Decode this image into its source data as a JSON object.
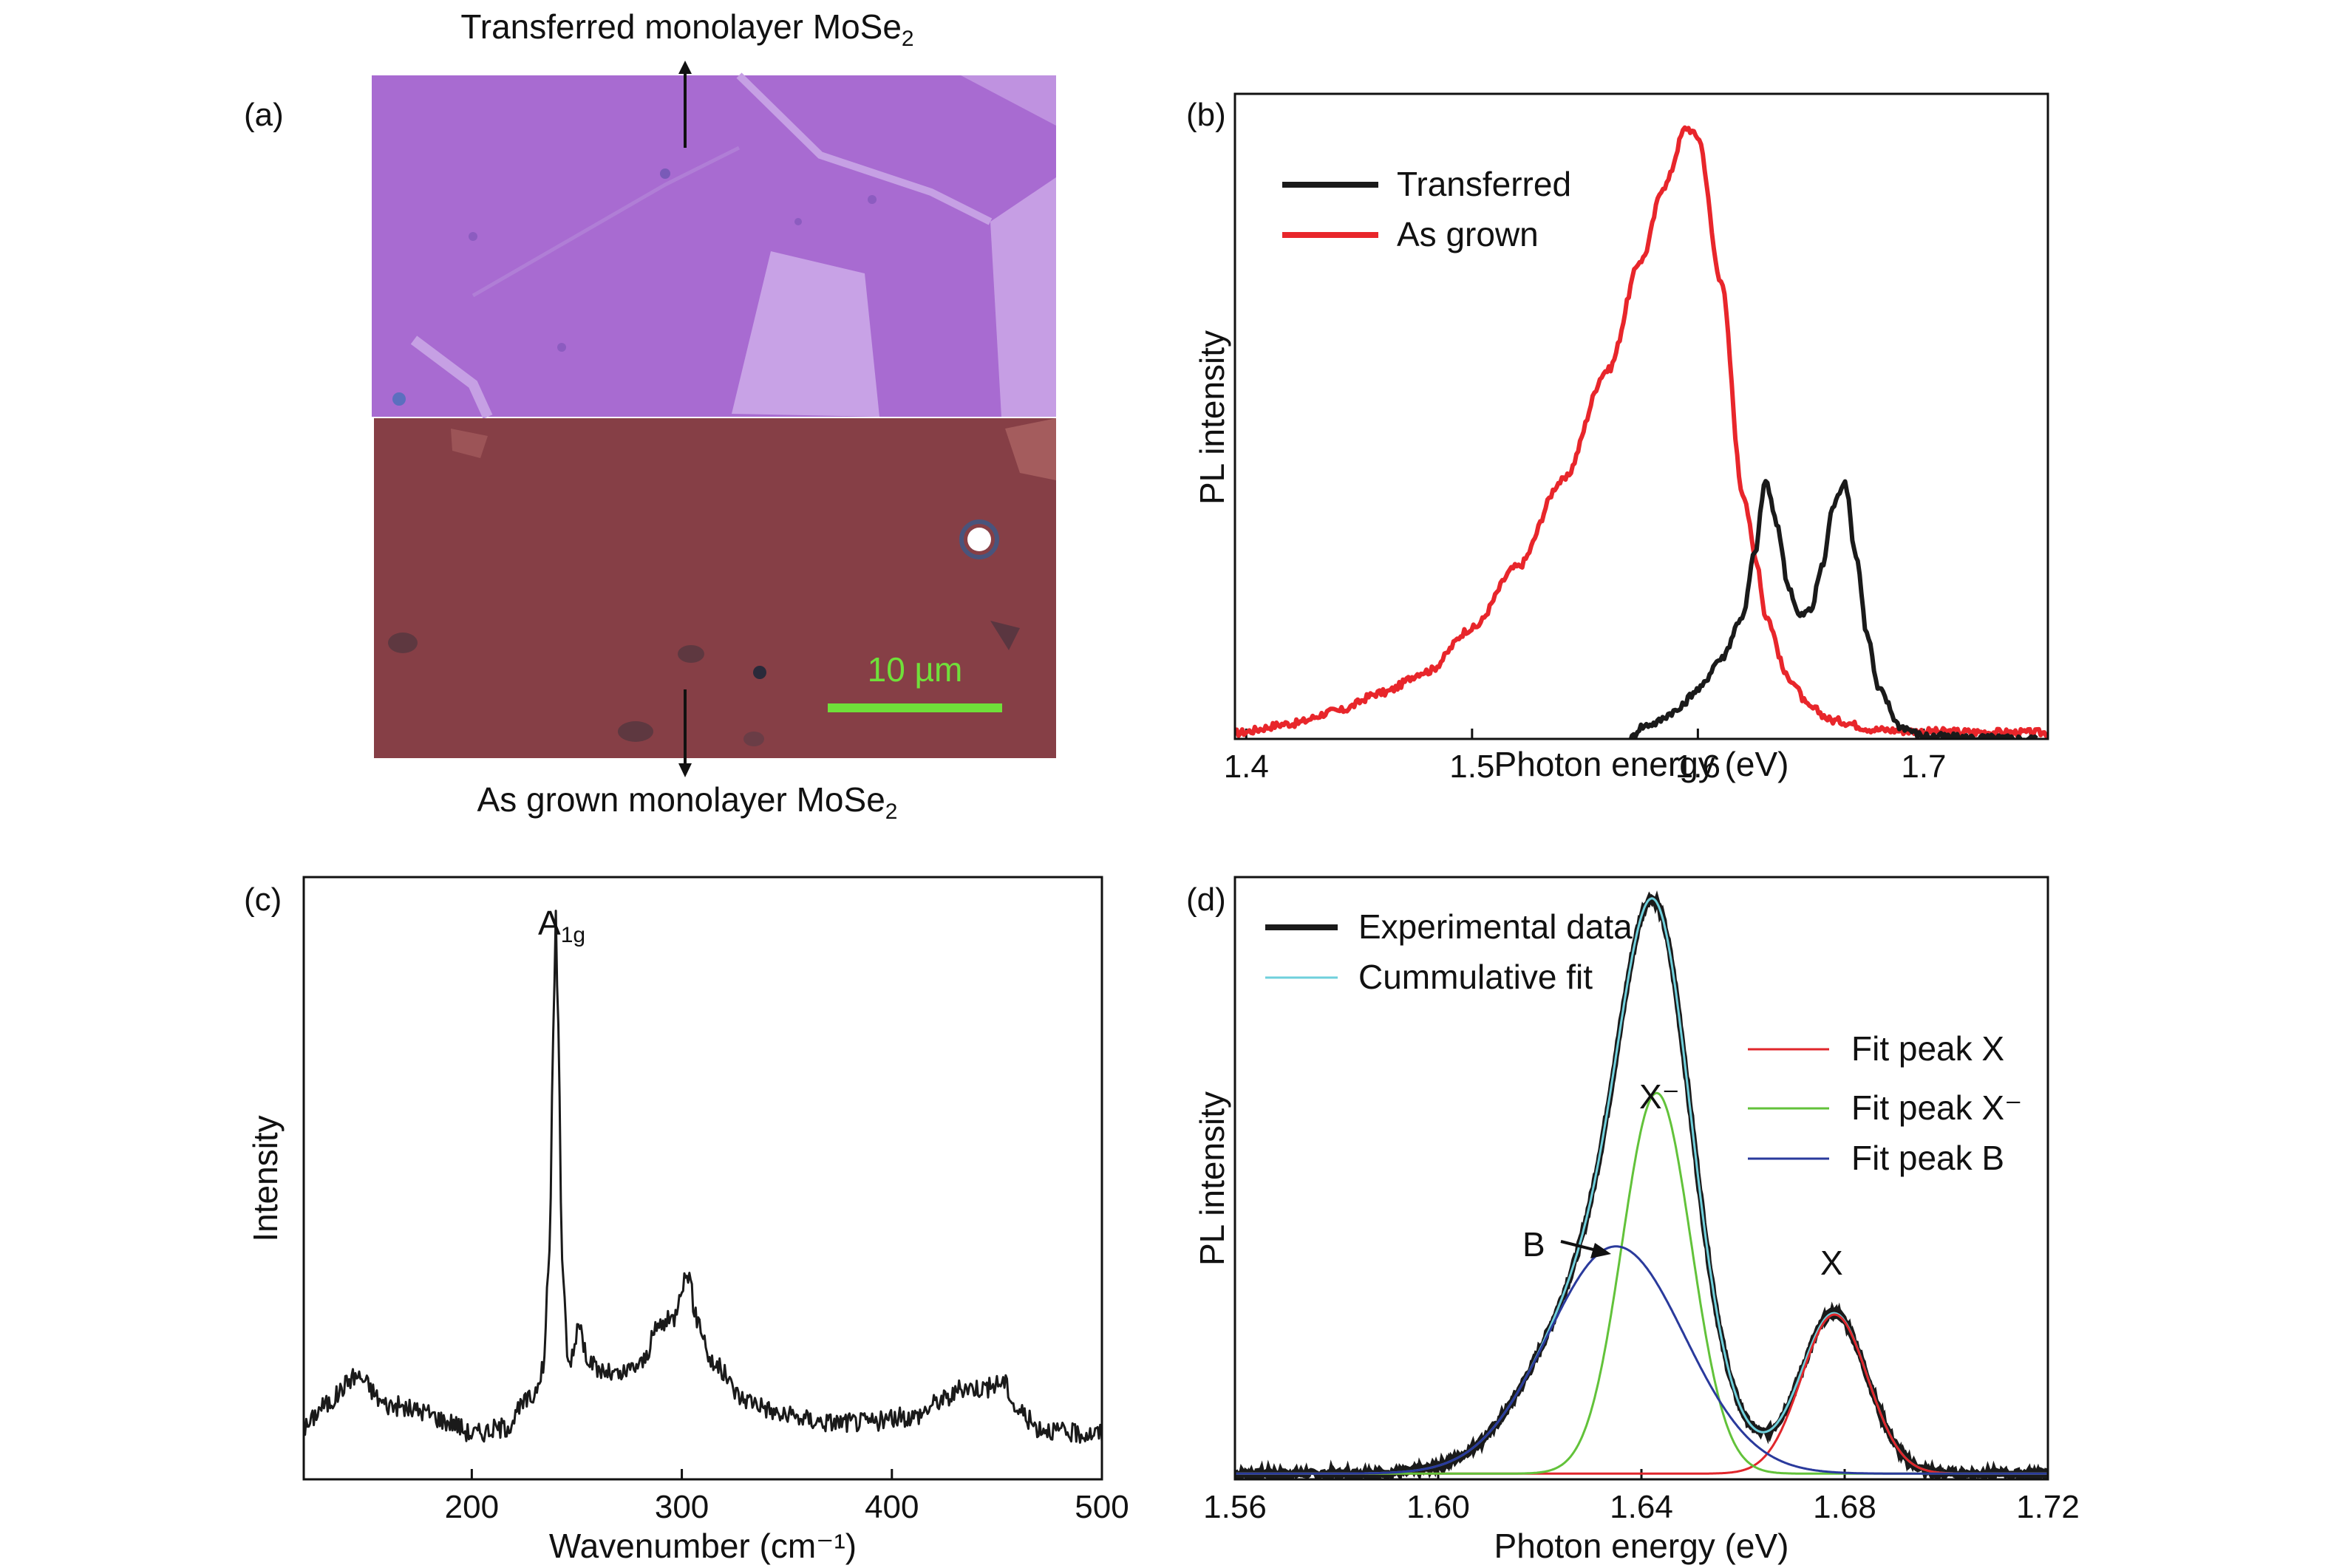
{
  "panels": {
    "a": {
      "label": "(a)",
      "top_caption": "Transferred monolayer MoSe",
      "top_caption_sub": "2",
      "bottom_caption": "As grown monolayer MoSe",
      "bottom_caption_sub": "2",
      "scale_bar_label": "10 µm",
      "colors": {
        "transferred": "#a566cf",
        "as_grown": "#8a4147",
        "scale_bar": "#6fe03a"
      }
    },
    "b": {
      "label": "(b)",
      "xlabel": "Photon energy (eV)",
      "ylabel": "PL intensity",
      "legend": [
        "Transferred",
        "As grown"
      ]
    },
    "c": {
      "label": "(c)",
      "xlabel": "Wavenumber (cm⁻¹)",
      "ylabel": "Intensity",
      "peak_label": "A",
      "peak_label_sub": "1g"
    },
    "d": {
      "label": "(d)",
      "xlabel": "Photon energy (eV)",
      "ylabel": "PL intensity",
      "legend_left": [
        "Experimental data",
        "Cummulative fit"
      ],
      "legend_right": [
        "Fit peak X",
        "Fit peak X⁻",
        "Fit peak B"
      ],
      "annotations": [
        "X⁻",
        "B",
        "X"
      ]
    }
  },
  "chart_data": [
    {
      "panel": "b",
      "type": "line",
      "xlabel": "Photon energy (eV)",
      "ylabel": "PL intensity",
      "xlim": [
        1.395,
        1.755
      ],
      "ylim": [
        0,
        1.05
      ],
      "xticks": [
        1.4,
        1.5,
        1.6,
        1.7
      ],
      "legend_position": "top-left",
      "series": [
        {
          "name": "As grown",
          "color": "#e8262b",
          "x": [
            1.395,
            1.42,
            1.44,
            1.46,
            1.48,
            1.5,
            1.52,
            1.54,
            1.56,
            1.575,
            1.585,
            1.595,
            1.6,
            1.61,
            1.62,
            1.626,
            1.63,
            1.64,
            1.65,
            1.66,
            1.68,
            1.7,
            1.755
          ],
          "y": [
            0.01,
            0.025,
            0.045,
            0.075,
            0.11,
            0.18,
            0.28,
            0.42,
            0.6,
            0.78,
            0.9,
            0.995,
            0.98,
            0.75,
            0.4,
            0.29,
            0.2,
            0.1,
            0.05,
            0.03,
            0.015,
            0.012,
            0.01
          ]
        },
        {
          "name": "Transferred",
          "color": "#1a1a1a",
          "x": [
            1.57,
            1.575,
            1.58,
            1.59,
            1.6,
            1.61,
            1.62,
            1.625,
            1.63,
            1.635,
            1.64,
            1.645,
            1.65,
            1.655,
            1.66,
            1.665,
            1.67,
            1.675,
            1.68,
            1.69,
            1.7,
            1.72,
            1.75
          ],
          "y": [
            0.0,
            0.02,
            0.025,
            0.045,
            0.08,
            0.13,
            0.2,
            0.3,
            0.42,
            0.35,
            0.25,
            0.2,
            0.21,
            0.28,
            0.38,
            0.42,
            0.3,
            0.17,
            0.08,
            0.02,
            0.005,
            0.002,
            0.0
          ]
        }
      ]
    },
    {
      "panel": "c",
      "type": "line",
      "xlabel": "Wavenumber (cm⁻¹)",
      "ylabel": "Intensity",
      "xlim": [
        120,
        500
      ],
      "ylim": [
        0,
        1.05
      ],
      "xticks": [
        200,
        300,
        400,
        500
      ],
      "series": [
        {
          "name": "",
          "color": "#1a1a1a",
          "x": [
            120,
            130,
            145,
            160,
            175,
            190,
            200,
            215,
            228,
            234,
            237,
            239,
            240,
            241,
            243,
            246,
            248,
            251,
            254,
            260,
            270,
            280,
            290,
            296,
            300,
            303,
            307,
            315,
            330,
            350,
            370,
            390,
            410,
            425,
            435,
            445,
            453,
            460,
            470,
            485,
            500
          ],
          "y": [
            0.09,
            0.13,
            0.18,
            0.13,
            0.12,
            0.1,
            0.08,
            0.09,
            0.14,
            0.19,
            0.4,
            0.8,
            1.0,
            0.8,
            0.38,
            0.2,
            0.22,
            0.28,
            0.22,
            0.19,
            0.18,
            0.2,
            0.27,
            0.28,
            0.34,
            0.36,
            0.28,
            0.2,
            0.14,
            0.11,
            0.1,
            0.1,
            0.11,
            0.14,
            0.16,
            0.16,
            0.17,
            0.12,
            0.09,
            0.08,
            0.08
          ]
        }
      ]
    },
    {
      "panel": "d",
      "type": "line",
      "xlabel": "Photon energy (eV)",
      "ylabel": "PL intensity",
      "xlim": [
        1.56,
        1.72
      ],
      "ylim": [
        -0.01,
        1.05
      ],
      "xticks": [
        1.56,
        1.6,
        1.64,
        1.68,
        1.72
      ],
      "legend_position": "top-left and right",
      "series": [
        {
          "name": "Fit peak X",
          "color": "#e0262b",
          "shape": "gaussian",
          "center": 1.678,
          "amplitude": 0.28,
          "sigma": 0.0065
        },
        {
          "name": "Fit peak X⁻",
          "color": "#62c23a",
          "shape": "gaussian",
          "center": 1.643,
          "amplitude": 0.67,
          "sigma": 0.0068
        },
        {
          "name": "Fit peak B",
          "color": "#2a3a9c",
          "shape": "gaussian",
          "center": 1.635,
          "amplitude": 0.4,
          "sigma": 0.0135
        },
        {
          "name": "Cummulative fit",
          "color": "#6fd0dc",
          "shape": "sum"
        },
        {
          "name": "Experimental data",
          "color": "#1a1a1a",
          "shape": "sum-with-noise"
        }
      ]
    }
  ]
}
